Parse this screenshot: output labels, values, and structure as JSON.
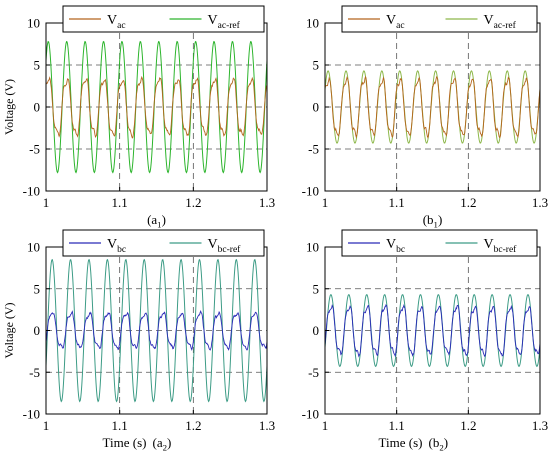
{
  "figure": {
    "panels": [
      {
        "id": "a1",
        "caption": "(a",
        "caption_sub": "1",
        "caption_close": ")",
        "xlabel": "",
        "ylabel": "Voltage (V)"
      },
      {
        "id": "b1",
        "caption": "(b",
        "caption_sub": "1",
        "caption_close": ")",
        "xlabel": "",
        "ylabel": ""
      },
      {
        "id": "a2",
        "caption": "(a",
        "caption_sub": "2",
        "caption_close": ")",
        "xlabel": "Time (s)",
        "ylabel": "Voltage (V)"
      },
      {
        "id": "b2",
        "caption": "(b",
        "caption_sub": "2",
        "caption_close": ")",
        "xlabel": "Time (s)",
        "ylabel": ""
      }
    ]
  },
  "chart_data": [
    {
      "type": "line",
      "panel": "a1",
      "xlim": [
        1,
        1.3
      ],
      "ylim": [
        -10,
        10
      ],
      "x_ticks": [
        "1",
        "1.1",
        "1.2",
        "1.3"
      ],
      "y_ticks": [
        "10",
        "5",
        "0",
        "-5",
        "-10"
      ],
      "grid": true,
      "legend_position": "top",
      "series": [
        {
          "name": "V",
          "name_sub": "ac",
          "color": "#b5651d",
          "amplitude": 3.5,
          "offset": 0,
          "frequency_hz": 40,
          "phase_deg": 45,
          "noise": 0.4
        },
        {
          "name": "V",
          "name_sub": "ac-ref",
          "color": "#2db52d",
          "amplitude": 7.8,
          "offset": 0,
          "frequency_hz": 40,
          "phase_deg": 45,
          "noise": 0
        }
      ]
    },
    {
      "type": "line",
      "panel": "b1",
      "xlim": [
        1,
        1.3
      ],
      "ylim": [
        -10,
        10
      ],
      "x_ticks": [
        "1",
        "1.1",
        "1.2",
        "1.3"
      ],
      "y_ticks": [
        "10",
        "5",
        "0",
        "-5",
        "-10"
      ],
      "grid": true,
      "legend_position": "top",
      "series": [
        {
          "name": "V",
          "name_sub": "ac",
          "color": "#b5651d",
          "amplitude": 3.5,
          "offset": 0,
          "frequency_hz": 40,
          "phase_deg": 28,
          "noise": 0.4
        },
        {
          "name": "V",
          "name_sub": "ac-ref",
          "color": "#8db84a",
          "amplitude": 4.3,
          "offset": 0,
          "frequency_hz": 40,
          "phase_deg": 28,
          "noise": 0
        }
      ]
    },
    {
      "type": "line",
      "panel": "a2",
      "xlim": [
        1,
        1.3
      ],
      "ylim": [
        -10,
        10
      ],
      "x_ticks": [
        "1",
        "1.1",
        "1.2",
        "1.3"
      ],
      "y_ticks": [
        "10",
        "5",
        "0",
        "-5",
        "-10"
      ],
      "grid": true,
      "legend_position": "top",
      "series": [
        {
          "name": "V",
          "name_sub": "bc",
          "color": "#2b2bb8",
          "amplitude": 2.2,
          "offset": 0,
          "frequency_hz": 40,
          "phase_deg": -30,
          "noise": 0.35
        },
        {
          "name": "V",
          "name_sub": "bc-ref",
          "color": "#3d9c86",
          "amplitude": 8.5,
          "offset": 0,
          "frequency_hz": 40,
          "phase_deg": -30,
          "noise": 0
        }
      ]
    },
    {
      "type": "line",
      "panel": "b2",
      "xlim": [
        1,
        1.3
      ],
      "ylim": [
        -10,
        10
      ],
      "x_ticks": [
        "1",
        "1.1",
        "1.2",
        "1.3"
      ],
      "y_ticks": [
        "10",
        "5",
        "0",
        "-5",
        "-10"
      ],
      "grid": true,
      "legend_position": "top",
      "series": [
        {
          "name": "V",
          "name_sub": "bc",
          "color": "#2b2bb8",
          "amplitude": 3.0,
          "offset": 0,
          "frequency_hz": 40,
          "phase_deg": -28,
          "noise": 0.35
        },
        {
          "name": "V",
          "name_sub": "bc-ref",
          "color": "#3d9c86",
          "amplitude": 4.3,
          "offset": 0,
          "frequency_hz": 40,
          "phase_deg": -28,
          "noise": 0
        }
      ]
    }
  ]
}
